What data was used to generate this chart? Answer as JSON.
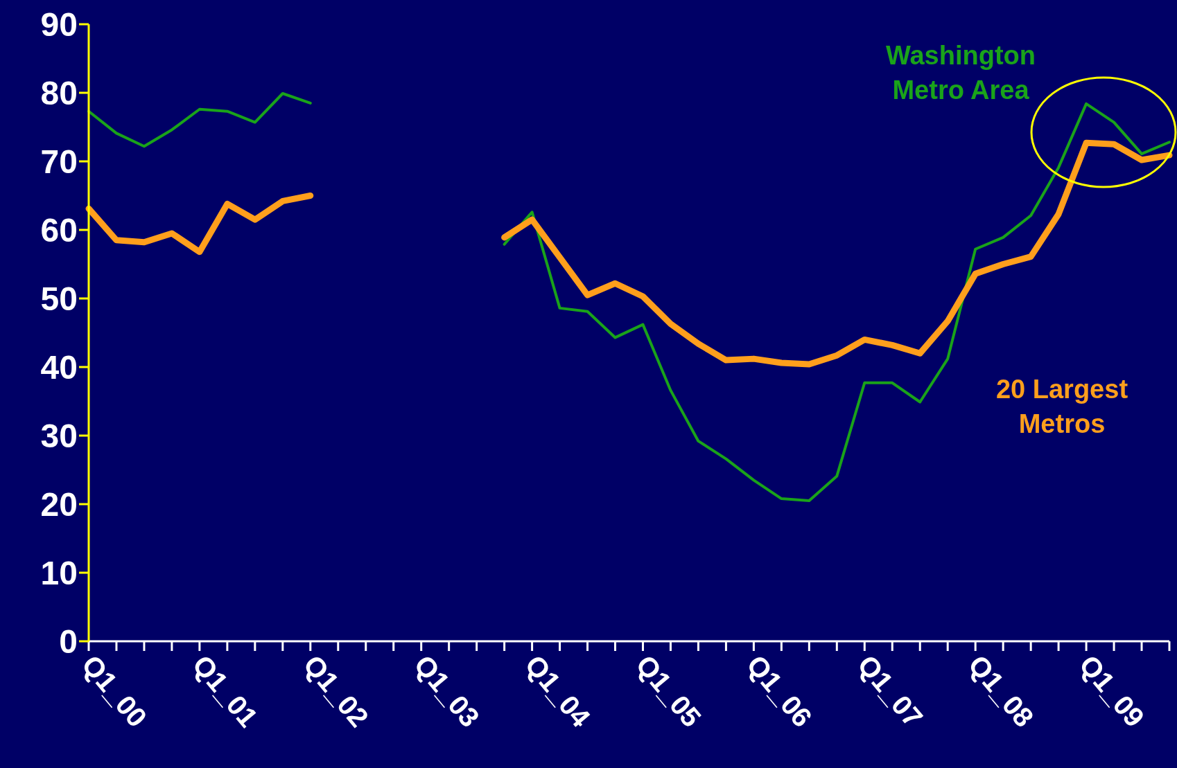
{
  "chart_data": {
    "type": "line",
    "categories": [
      "Q1_00",
      null,
      null,
      null,
      "Q1_01",
      null,
      null,
      null,
      "Q1_02",
      null,
      null,
      null,
      "Q1_03",
      null,
      null,
      null,
      "Q1_04",
      null,
      null,
      null,
      "Q1_05",
      null,
      null,
      null,
      "Q1_06",
      null,
      null,
      null,
      "Q1_07",
      null,
      null,
      null,
      "Q1_08",
      null,
      null,
      null,
      "Q1_09",
      null,
      null,
      null
    ],
    "series": [
      {
        "name": "Washington Metro Area",
        "color": "#1aa31a",
        "values": [
          77.3,
          74.1,
          72.2,
          74.6,
          77.6,
          77.3,
          75.7,
          79.9,
          78.5,
          null,
          null,
          null,
          null,
          null,
          null,
          57.9,
          62.6,
          48.6,
          48.1,
          44.3,
          46.2,
          36.6,
          29.2,
          26.6,
          23.5,
          20.8,
          20.5,
          24.1,
          37.7,
          37.7,
          34.9,
          41.2,
          57.2,
          58.9,
          62.1,
          69.1,
          78.4,
          75.7,
          71.1,
          72.8
        ]
      },
      {
        "name": "20 Largest Metros",
        "color": "#ff9f1c",
        "values": [
          63.1,
          58.5,
          58.2,
          59.5,
          56.8,
          63.8,
          61.5,
          64.2,
          65.0,
          null,
          null,
          null,
          null,
          null,
          null,
          58.9,
          61.5,
          56.0,
          50.5,
          52.2,
          50.3,
          46.3,
          43.4,
          41.0,
          41.2,
          40.6,
          40.4,
          41.7,
          44.0,
          43.2,
          42.0,
          46.7,
          53.6,
          55.0,
          56.1,
          62.3,
          72.7,
          72.5,
          70.2,
          70.9
        ]
      }
    ],
    "ylim": [
      0,
      90
    ],
    "yticks": [
      0,
      10,
      20,
      30,
      40,
      50,
      60,
      70,
      80,
      90
    ],
    "grid": false,
    "legend": false,
    "marker": "none",
    "line_style": "solid"
  }
}
